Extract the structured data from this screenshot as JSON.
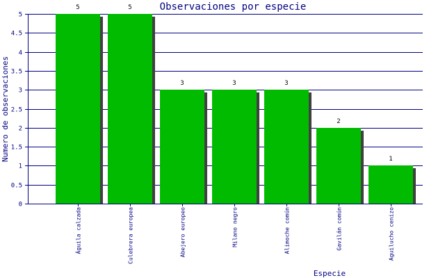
{
  "chart_data": {
    "type": "bar",
    "title": "Observaciones por especie",
    "xlabel": "Especie",
    "ylabel": "Numero de observaciones",
    "categories": [
      "Águila calzada",
      "Culebrera europea",
      "Abejero europeo",
      "Milano negro",
      "Alimoche común",
      "Gavilán común",
      "Aguilucho cenizo"
    ],
    "values": [
      5,
      5,
      3,
      3,
      3,
      2,
      1
    ],
    "ylim": [
      0,
      5
    ],
    "yticks": [
      "0",
      "0.5",
      "1",
      "1.5",
      "2",
      "2.5",
      "3",
      "3.5",
      "4",
      "4.5",
      "5"
    ],
    "grid": true,
    "colors": {
      "bar": "#00bb00",
      "bar_shadow": "#404040",
      "grid": "#000080",
      "text": "#000080",
      "value_label": "#000000",
      "background": "#ffffff"
    }
  }
}
